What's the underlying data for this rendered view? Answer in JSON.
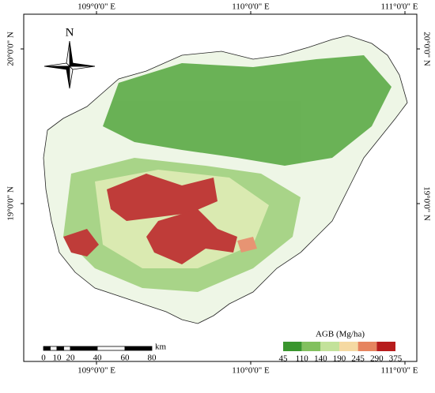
{
  "map": {
    "graticule": {
      "lon_labels": [
        "109°0'0\" E",
        "110°0'0\" E",
        "111°0'0\" E"
      ],
      "lat_labels": [
        "20°0'0\" N",
        "19°0'0\" N"
      ]
    },
    "north_label": "N",
    "scale_bar": {
      "labels": [
        "0",
        "10",
        "20",
        "40",
        "60",
        "80"
      ],
      "unit": "km"
    },
    "legend": {
      "title": "AGB (Mg/ha)",
      "breaks": [
        "45",
        "110",
        "140",
        "190",
        "245",
        "290",
        "375"
      ],
      "colors": [
        "#3a962e",
        "#82c05e",
        "#c3e29a",
        "#f5d9a2",
        "#e6845f",
        "#b71c1c"
      ]
    }
  }
}
